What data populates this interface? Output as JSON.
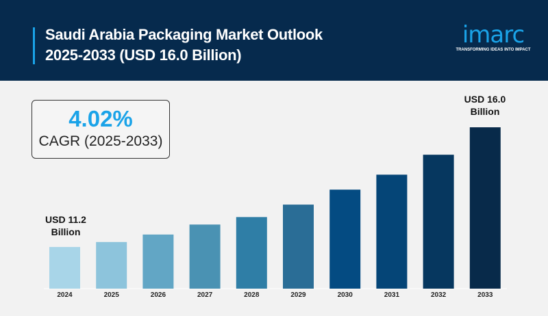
{
  "header": {
    "title_line1": "Saudi Arabia Packaging Market Outlook",
    "title_line2": "2025-2033 (USD 16.0 Billion)"
  },
  "logo": {
    "word": "imarc",
    "tagline": "TRANSFORMING IDEAS INTO IMPACT",
    "color": "#1aa3e8"
  },
  "cagr": {
    "value": "4.02%",
    "label": "CAGR (2025-2033)"
  },
  "chart_data": {
    "type": "bar",
    "categories": [
      "2024",
      "2025",
      "2026",
      "2027",
      "2028",
      "2029",
      "2030",
      "2031",
      "2032",
      "2033"
    ],
    "values": [
      11.2,
      11.4,
      11.7,
      12.1,
      12.4,
      12.9,
      13.5,
      14.1,
      14.9,
      16.0
    ],
    "colors": [
      "#a8d5e8",
      "#8dc4dc",
      "#62a6c5",
      "#4a92b3",
      "#2f7ea6",
      "#2a6d96",
      "#044b82",
      "#054577",
      "#06375f",
      "#082a4a"
    ],
    "annotations": [
      {
        "category": "2024",
        "line1": "USD 11.2",
        "line2": "Billion"
      },
      {
        "category": "2033",
        "line1": "USD 16.0",
        "line2": "Billion"
      }
    ],
    "title": "",
    "xlabel": "",
    "ylabel": "",
    "grid": false
  }
}
